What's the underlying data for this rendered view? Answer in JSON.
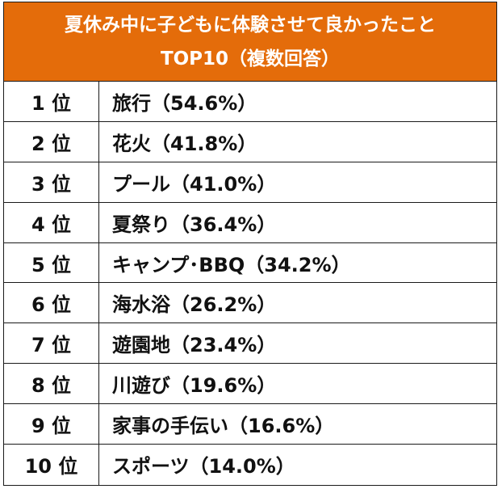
{
  "header": {
    "title_line1": "夏休み中に子どもに体験させて良かったこと",
    "title_line2": "TOP10（複数回答）"
  },
  "colors": {
    "header_bg": "#e46c0a",
    "header_text": "#ffffff",
    "border": "#1a1a1a"
  },
  "rows": [
    {
      "rank": "1 位",
      "item": "旅行（54.6%）"
    },
    {
      "rank": "2 位",
      "item": "花火（41.8%）"
    },
    {
      "rank": "3 位",
      "item": "プール（41.0%）"
    },
    {
      "rank": "4 位",
      "item": "夏祭り（36.4%）"
    },
    {
      "rank": "5 位",
      "item": "キャンプ･BBQ（34.2%）"
    },
    {
      "rank": "6 位",
      "item": "海水浴（26.2%）"
    },
    {
      "rank": "7 位",
      "item": "遊園地（23.4%）"
    },
    {
      "rank": "8 位",
      "item": "川遊び（19.6%）"
    },
    {
      "rank": "9 位",
      "item": "家事の手伝い（16.6%）"
    },
    {
      "rank": "10 位",
      "item": "スポーツ（14.0%）"
    }
  ]
}
